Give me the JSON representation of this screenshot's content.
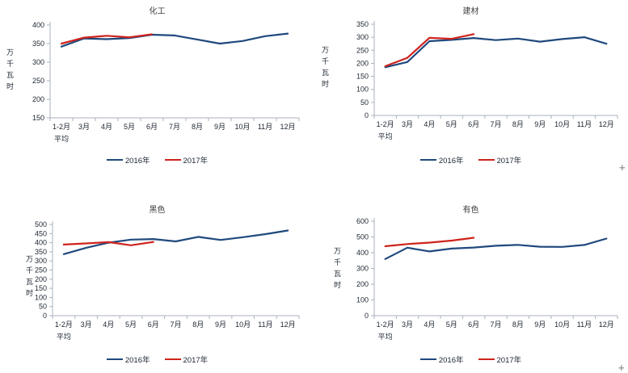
{
  "colors": {
    "series_2016": "#1F497D",
    "series_2017": "#CE231C",
    "axis_line": "#A9B2BC",
    "axis_text": "#1C2530",
    "title_text": "#404040",
    "cursor": "#9B9B9B"
  },
  "artifacts": {
    "cell_cursor_glyph": "+"
  },
  "chart_data": [
    {
      "type": "line",
      "title": "化工",
      "ylabel": "万千瓦时",
      "xlabel": "",
      "categories": [
        "1-2月\n平均",
        "3月",
        "4月",
        "5月",
        "6月",
        "7月",
        "8月",
        "9月",
        "10月",
        "11月",
        "12月"
      ],
      "ylim": [
        150,
        400
      ],
      "ystep": 50,
      "grid": false,
      "legend_position": "bottom",
      "series": [
        {
          "name": "2016年",
          "color_key": "series_2016",
          "values": [
            342,
            364,
            362,
            365,
            374,
            372,
            361,
            350,
            357,
            370,
            377
          ]
        },
        {
          "name": "2017年",
          "color_key": "series_2017",
          "values": [
            350,
            366,
            371,
            367,
            375
          ]
        }
      ]
    },
    {
      "type": "line",
      "title": "建材",
      "ylabel": "万千瓦时",
      "xlabel": "",
      "categories": [
        "1-2月\n平均",
        "3月",
        "4月",
        "5月",
        "6月",
        "7月",
        "8月",
        "9月",
        "10月",
        "11月",
        "12月"
      ],
      "ylim": [
        0,
        350
      ],
      "ystep": 50,
      "grid": false,
      "legend_position": "bottom",
      "series": [
        {
          "name": "2016年",
          "color_key": "series_2016",
          "values": [
            185,
            205,
            285,
            290,
            297,
            289,
            295,
            283,
            293,
            300,
            275
          ]
        },
        {
          "name": "2017年",
          "color_key": "series_2017",
          "values": [
            189,
            221,
            298,
            294,
            312
          ]
        }
      ]
    },
    {
      "type": "line",
      "title": "黑色",
      "ylabel": "万千瓦时",
      "xlabel": "",
      "categories": [
        "1-2月\n平均",
        "3月",
        "4月",
        "5月",
        "6月",
        "7月",
        "8月",
        "9月",
        "10月",
        "11月",
        "12月"
      ],
      "ylim": [
        0,
        500
      ],
      "ystep": 50,
      "grid": false,
      "legend_position": "bottom",
      "series": [
        {
          "name": "2016年",
          "color_key": "series_2016",
          "values": [
            337,
            372,
            400,
            417,
            420,
            407,
            432,
            415,
            430,
            447,
            467
          ]
        },
        {
          "name": "2017年",
          "color_key": "series_2017",
          "values": [
            390,
            396,
            403,
            386,
            404
          ]
        }
      ]
    },
    {
      "type": "line",
      "title": "有色",
      "ylabel": "万千瓦时",
      "xlabel": "",
      "categories": [
        "1-2月\n平均",
        "3月",
        "4月",
        "5月",
        "6月",
        "7月",
        "8月",
        "9月",
        "10月",
        "11月",
        "12月"
      ],
      "ylim": [
        0,
        600
      ],
      "ystep": 100,
      "grid": false,
      "legend_position": "bottom",
      "series": [
        {
          "name": "2016年",
          "color_key": "series_2016",
          "values": [
            360,
            432,
            408,
            426,
            433,
            444,
            450,
            438,
            437,
            449,
            490
          ]
        },
        {
          "name": "2017年",
          "color_key": "series_2017",
          "values": [
            441,
            455,
            464,
            477,
            495
          ]
        }
      ]
    }
  ]
}
